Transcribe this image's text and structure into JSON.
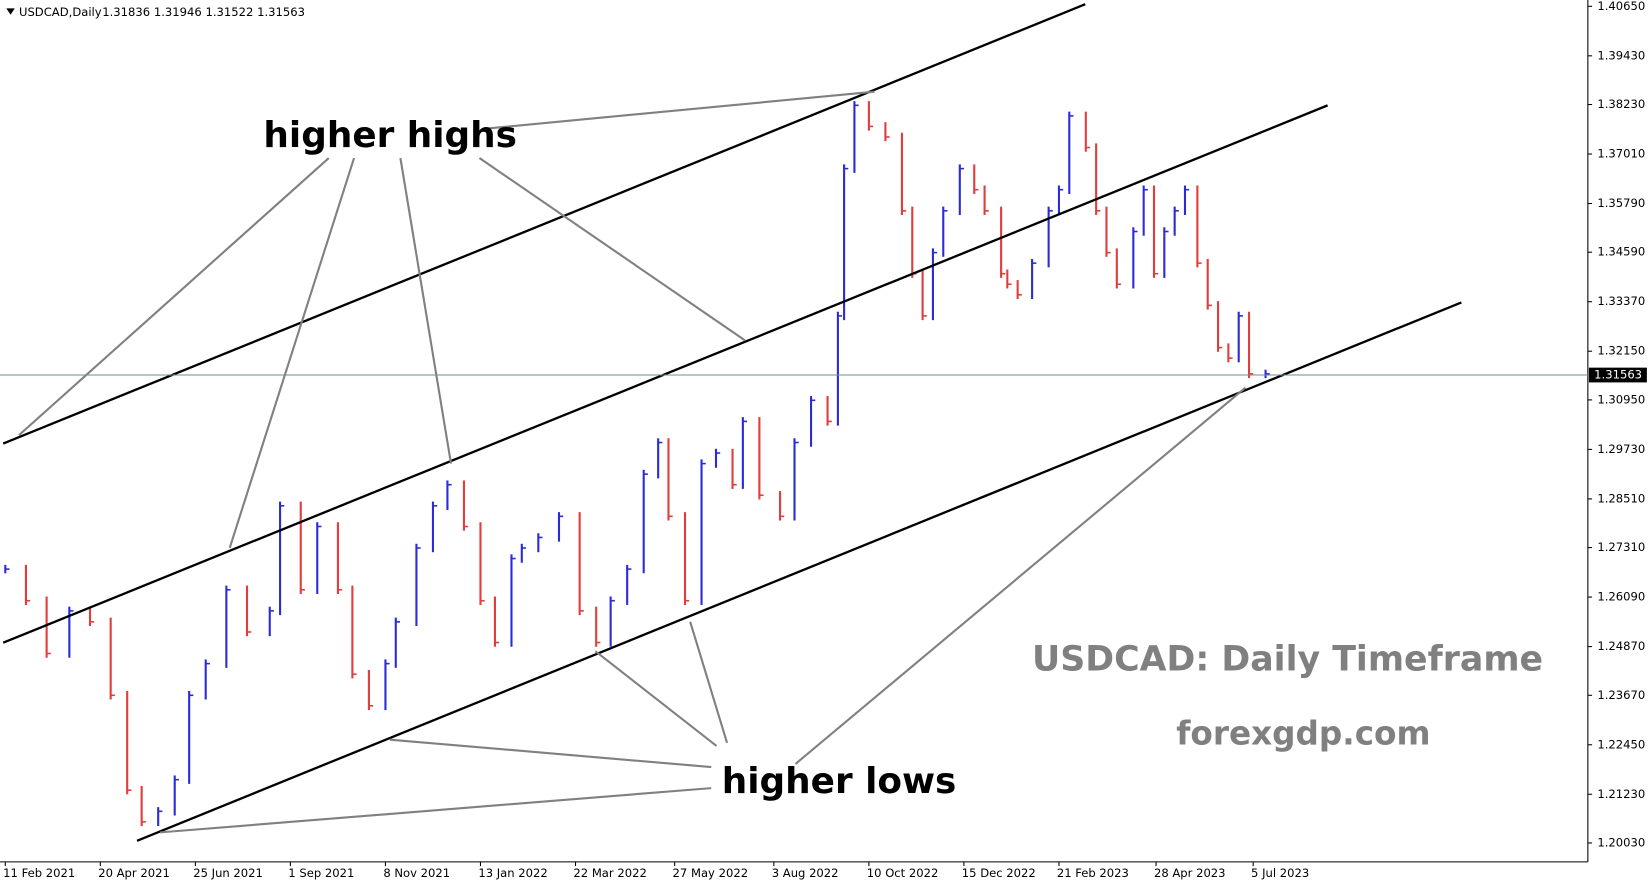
{
  "chart_data": {
    "type": "ohlc",
    "symbol": "USDCAD,Daily",
    "quote": [
      "1.31836",
      "1.31946",
      "1.31522",
      "1.31563"
    ],
    "x": [
      0,
      10,
      20,
      31,
      41,
      51,
      59,
      66,
      74,
      82,
      89,
      97,
      107,
      117,
      128,
      133,
      143,
      151,
      161,
      168,
      176,
      184,
      189,
      199,
      207,
      214,
      222,
      230,
      237,
      245,
      250,
      258,
      268,
      278,
      286,
      293,
      301,
      309,
      316,
      321,
      329,
      337,
      344,
      352,
      357,
      365,
      375,
      382,
      390,
      398,
      403,
      406,
      411,
      418,
      426,
      434,
      439,
      444,
      449,
      454,
      462,
      469,
      474,
      482,
      485,
      490,
      497,
      505,
      510,
      515,
      523,
      528,
      533,
      538,
      546,
      551,
      556,
      561,
      566,
      571,
      577,
      582,
      587,
      592,
      597,
      602,
      610
    ],
    "values": [
      1.2678,
      1.26,
      1.247,
      1.2575,
      1.2548,
      1.2367,
      1.2133,
      1.2055,
      1.2081,
      1.2159,
      1.2367,
      1.2445,
      1.2627,
      1.2523,
      1.2575,
      1.2834,
      1.2627,
      1.2783,
      1.2627,
      1.2419,
      1.2341,
      1.2445,
      1.2548,
      1.273,
      1.2834,
      1.2886,
      1.2783,
      1.26,
      1.2497,
      1.2704,
      1.273,
      1.2756,
      1.2808,
      1.2575,
      1.2497,
      1.26,
      1.2678,
      1.2912,
      1.299,
      1.2808,
      1.26,
      1.2938,
      1.2964,
      1.2886,
      1.3042,
      1.286,
      1.2808,
      1.299,
      1.3094,
      1.3042,
      1.3302,
      1.3665,
      1.3821,
      1.3769,
      1.3743,
      1.3561,
      1.3406,
      1.3302,
      1.3458,
      1.3561,
      1.3665,
      1.3613,
      1.3561,
      1.3406,
      1.338,
      1.3354,
      1.3432,
      1.3561,
      1.3613,
      1.3795,
      1.3717,
      1.3561,
      1.3458,
      1.338,
      1.351,
      1.3613,
      1.3406,
      1.351,
      1.3561,
      1.3613,
      1.3432,
      1.3328,
      1.3224,
      1.3198,
      1.3302,
      1.3159,
      1.3159
    ],
    "colors": {
      "up": "#2b2bd9",
      "down": "#e23c3c"
    },
    "xlim": [
      0,
      766
    ],
    "xticks": [
      {
        "value": 0,
        "label": "11 Feb 2021"
      },
      {
        "value": 46,
        "label": "20 Apr 2021"
      },
      {
        "value": 92,
        "label": "25 Jun 2021"
      },
      {
        "value": 138,
        "label": "1 Sep 2021"
      },
      {
        "value": 184,
        "label": "8 Nov 2021"
      },
      {
        "value": 230,
        "label": "13 Jan 2022"
      },
      {
        "value": 276,
        "label": "22 Mar 2022"
      },
      {
        "value": 324,
        "label": "27 May 2022"
      },
      {
        "value": 372,
        "label": "3 Aug 2022"
      },
      {
        "value": 418,
        "label": "10 Oct 2022"
      },
      {
        "value": 464,
        "label": "15 Dec 2022"
      },
      {
        "value": 510,
        "label": "21 Feb 2023"
      },
      {
        "value": 557,
        "label": "28 Apr 2023"
      },
      {
        "value": 604,
        "label": "5 Jul 2023"
      }
    ],
    "ylim": [
      1.19564,
      1.40806
    ],
    "yticks": [
      {
        "value": 1.4065,
        "label": "1.40650"
      },
      {
        "value": 1.3943,
        "label": "1.39430"
      },
      {
        "value": 1.3823,
        "label": "1.38230"
      },
      {
        "value": 1.3701,
        "label": "1.37010"
      },
      {
        "value": 1.3579,
        "label": "1.35790"
      },
      {
        "value": 1.3459,
        "label": "1.34590"
      },
      {
        "value": 1.3337,
        "label": "1.33370"
      },
      {
        "value": 1.3215,
        "label": "1.32150"
      },
      {
        "value": 1.3095,
        "label": "1.30950"
      },
      {
        "value": 1.2973,
        "label": "1.29730"
      },
      {
        "value": 1.2851,
        "label": "1.28510"
      },
      {
        "value": 1.2731,
        "label": "1.27310"
      },
      {
        "value": 1.2609,
        "label": "1.26090"
      },
      {
        "value": 1.2487,
        "label": "1.24870"
      },
      {
        "value": 1.2367,
        "label": "1.23670"
      },
      {
        "value": 1.2245,
        "label": "1.22450"
      },
      {
        "value": 1.2123,
        "label": "1.21230"
      },
      {
        "value": 1.2003,
        "label": "1.20030"
      }
    ],
    "current_price": {
      "value": 1.31563,
      "label": "1.31563"
    },
    "annotations": {
      "highs": "higher highs",
      "lows": "higher lows",
      "caption": "USDCAD: Daily Timeframe",
      "site": "forexgdp.com"
    }
  }
}
